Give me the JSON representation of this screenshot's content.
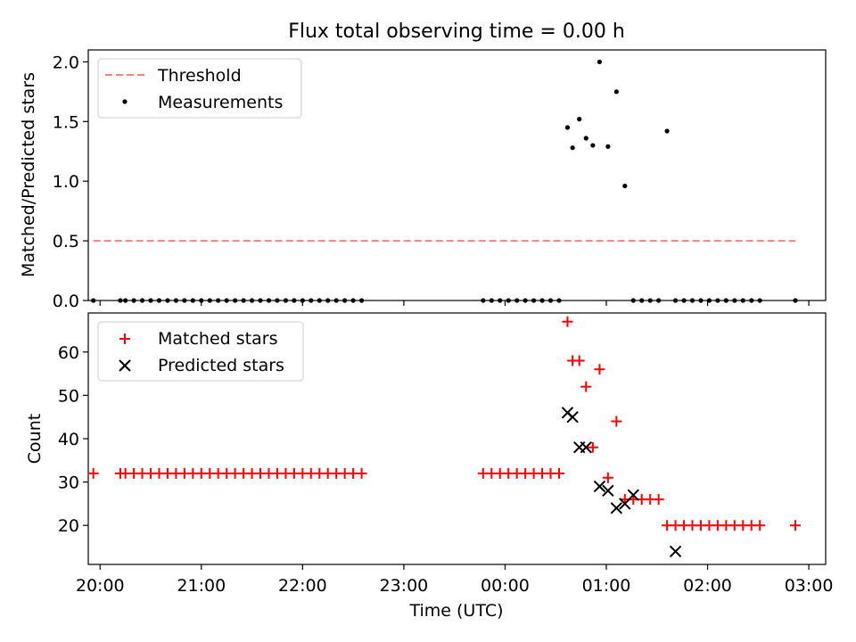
{
  "figure": {
    "title": "Flux total observing time = 0.00 h"
  },
  "chart_data": [
    {
      "type": "line+scatter",
      "ylabel": "Matched/Predicted stars",
      "xlabel": "",
      "ylim": [
        0,
        2.1
      ],
      "yticks": [
        "0.0",
        "0.5",
        "1.0",
        "1.5",
        "2.0"
      ],
      "xlim": [
        "19:53",
        "03:10"
      ],
      "legend_position": "upper-left",
      "threshold": {
        "name": "Threshold",
        "value": 0.5,
        "x_start": "19:56",
        "x_end": "02:52",
        "color": "#ff7f7f"
      },
      "measurements": {
        "name": "Measurements",
        "color": "#000000",
        "x": [
          "19:56",
          "20:12",
          "20:15",
          "20:20",
          "20:25",
          "20:30",
          "20:35",
          "20:40",
          "20:45",
          "20:50",
          "20:55",
          "21:00",
          "21:05",
          "21:10",
          "21:15",
          "21:20",
          "21:25",
          "21:30",
          "21:35",
          "21:40",
          "21:45",
          "21:50",
          "21:55",
          "22:00",
          "22:05",
          "22:10",
          "22:15",
          "22:20",
          "22:25",
          "22:30",
          "22:35",
          "23:47",
          "23:52",
          "23:57",
          "00:02",
          "00:07",
          "00:12",
          "00:17",
          "00:22",
          "00:27",
          "00:32",
          "00:37",
          "00:40",
          "00:44",
          "00:48",
          "00:52",
          "00:56",
          "01:01",
          "01:06",
          "01:11",
          "01:16",
          "01:21",
          "01:26",
          "01:31",
          "01:36",
          "01:41",
          "01:46",
          "01:51",
          "01:56",
          "02:01",
          "02:06",
          "02:11",
          "02:16",
          "02:21",
          "02:26",
          "02:31",
          "02:52"
        ],
        "y": [
          0,
          0,
          0,
          0,
          0,
          0,
          0,
          0,
          0,
          0,
          0,
          0,
          0,
          0,
          0,
          0,
          0,
          0,
          0,
          0,
          0,
          0,
          0,
          0,
          0,
          0,
          0,
          0,
          0,
          0,
          0,
          0,
          0,
          0,
          0,
          0,
          0,
          0,
          0,
          0,
          0,
          1.45,
          1.28,
          1.52,
          1.36,
          1.3,
          2.0,
          1.29,
          1.75,
          0.96,
          0,
          0,
          0,
          0,
          1.42,
          0,
          0,
          0,
          0,
          0,
          0,
          0,
          0,
          0,
          0,
          0,
          0
        ]
      }
    },
    {
      "type": "scatter",
      "ylabel": "Count",
      "xlabel": "Time (UTC)",
      "ylim": [
        11,
        69
      ],
      "yticks": [
        "20",
        "30",
        "40",
        "50",
        "60"
      ],
      "xlim": [
        "19:53",
        "03:10"
      ],
      "xticks": [
        "20:00",
        "21:00",
        "22:00",
        "23:00",
        "00:00",
        "01:00",
        "02:00",
        "03:00"
      ],
      "legend_position": "upper-left",
      "matched": {
        "name": "Matched stars",
        "color": "#ff0000",
        "x": [
          "19:56",
          "20:12",
          "20:15",
          "20:20",
          "20:25",
          "20:30",
          "20:35",
          "20:40",
          "20:45",
          "20:50",
          "20:55",
          "21:00",
          "21:05",
          "21:10",
          "21:15",
          "21:20",
          "21:25",
          "21:30",
          "21:35",
          "21:40",
          "21:45",
          "21:50",
          "21:55",
          "22:00",
          "22:05",
          "22:10",
          "22:15",
          "22:20",
          "22:25",
          "22:30",
          "22:35",
          "23:47",
          "23:52",
          "23:57",
          "00:02",
          "00:07",
          "00:12",
          "00:17",
          "00:22",
          "00:27",
          "00:32",
          "00:37",
          "00:40",
          "00:44",
          "00:48",
          "00:52",
          "00:56",
          "01:01",
          "01:06",
          "01:11",
          "01:16",
          "01:21",
          "01:26",
          "01:31",
          "01:36",
          "01:41",
          "01:46",
          "01:51",
          "01:56",
          "02:01",
          "02:06",
          "02:11",
          "02:16",
          "02:21",
          "02:26",
          "02:31",
          "02:52"
        ],
        "y": [
          32,
          32,
          32,
          32,
          32,
          32,
          32,
          32,
          32,
          32,
          32,
          32,
          32,
          32,
          32,
          32,
          32,
          32,
          32,
          32,
          32,
          32,
          32,
          32,
          32,
          32,
          32,
          32,
          32,
          32,
          32,
          32,
          32,
          32,
          32,
          32,
          32,
          32,
          32,
          32,
          32,
          67,
          58,
          58,
          52,
          38,
          56,
          31,
          44,
          26,
          26,
          26,
          26,
          26,
          20,
          20,
          20,
          20,
          20,
          20,
          20,
          20,
          20,
          20,
          20,
          20,
          20
        ]
      },
      "predicted": {
        "name": "Predicted stars",
        "color": "#000000",
        "x": [
          "00:37",
          "00:40",
          "00:44",
          "00:48",
          "00:56",
          "01:01",
          "01:06",
          "01:11",
          "01:16",
          "01:41"
        ],
        "y": [
          46,
          45,
          38,
          38,
          29,
          28,
          24,
          25,
          27,
          14
        ]
      }
    }
  ]
}
